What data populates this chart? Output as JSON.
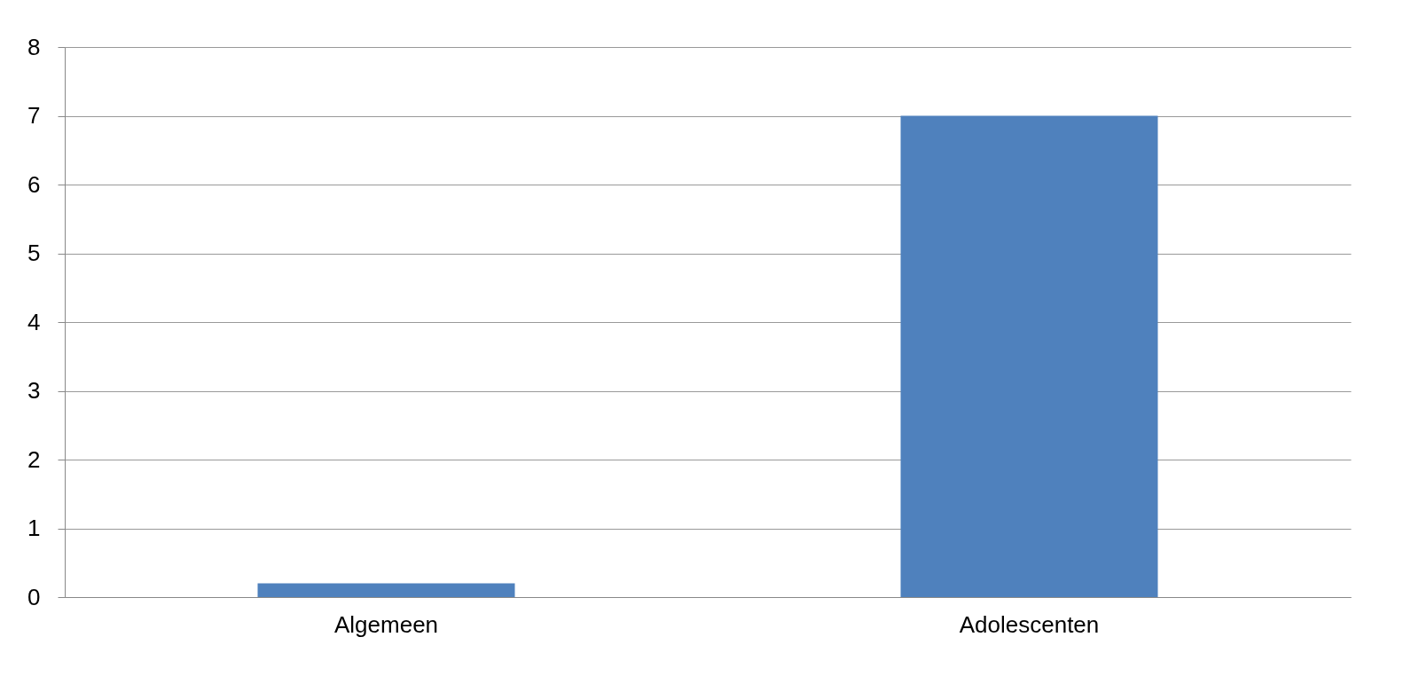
{
  "chart_data": {
    "type": "bar",
    "categories": [
      "Algemeen",
      "Adolescenten"
    ],
    "values": [
      0.2,
      7
    ],
    "color": "#4f81bd",
    "ylim": [
      0,
      8
    ],
    "yticks": [
      0,
      1,
      2,
      3,
      4,
      5,
      6,
      7,
      8
    ],
    "grid": "y"
  }
}
